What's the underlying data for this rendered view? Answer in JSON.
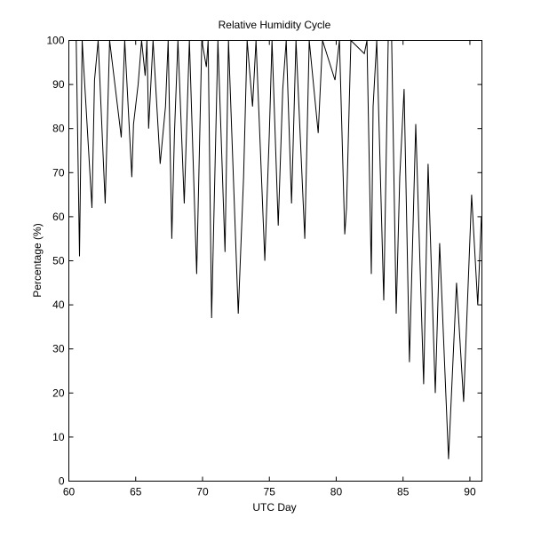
{
  "chart_data": {
    "type": "line",
    "title": "Relative Humidity Cycle",
    "xlabel": "UTC Day",
    "ylabel": "Percentage (%)",
    "xlim": [
      60,
      90.9
    ],
    "ylim": [
      0,
      100
    ],
    "xticks": [
      60,
      65,
      70,
      75,
      80,
      85,
      90
    ],
    "yticks": [
      0,
      10,
      20,
      30,
      40,
      50,
      60,
      70,
      80,
      90,
      100
    ],
    "grid": false,
    "line_color": "#000000",
    "series": [
      {
        "x": [
          60.55,
          60.8,
          61.0,
          61.73,
          61.92,
          62.19,
          62.72,
          63.05,
          63.92,
          64.18,
          64.71,
          64.84,
          65.18,
          65.44,
          65.71,
          65.84,
          65.97,
          66.3,
          66.83,
          67.23,
          67.43,
          67.7,
          67.9,
          68.16,
          68.63,
          69.02,
          69.56,
          69.95,
          70.29,
          70.42,
          70.68,
          71.15,
          71.68,
          71.94,
          72.67,
          73.07,
          73.34,
          73.74,
          74.0,
          74.66,
          75.0,
          75.2,
          75.66,
          76.0,
          76.26,
          76.66,
          76.99,
          77.65,
          77.98,
          78.65,
          78.98,
          79.91,
          80.24,
          80.64,
          80.77,
          81.1,
          82.1,
          82.3,
          82.63,
          82.76,
          83.03,
          83.56,
          83.89,
          84.15,
          84.49,
          84.75,
          85.08,
          85.48,
          85.95,
          86.54,
          86.87,
          87.41,
          87.74,
          88.4,
          89.0,
          89.53,
          90.13,
          90.59,
          90.86
        ],
        "y": [
          100,
          51,
          100,
          62,
          91,
          100,
          63,
          100,
          78,
          100,
          69,
          81,
          90,
          100,
          92,
          100,
          80,
          100,
          72,
          85,
          100,
          55,
          79,
          100,
          63,
          100,
          47,
          100,
          94,
          100,
          37,
          100,
          52,
          100,
          38,
          69,
          100,
          85,
          100,
          50,
          79,
          100,
          58,
          89,
          100,
          63,
          100,
          55,
          100,
          79,
          100,
          91,
          100,
          56,
          62,
          100,
          97,
          100,
          47,
          85,
          100,
          41,
          100,
          100,
          38,
          69,
          89,
          27,
          81,
          22,
          72,
          20,
          54,
          5,
          45,
          18,
          65,
          40,
          60
        ]
      }
    ]
  }
}
